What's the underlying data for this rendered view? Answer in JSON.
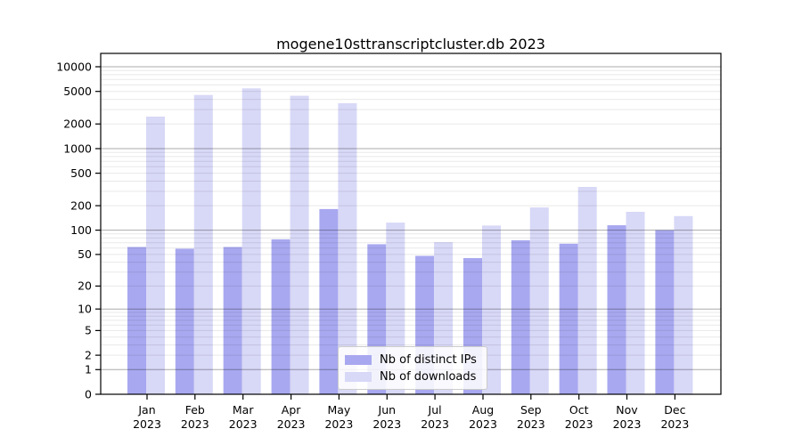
{
  "figure": {
    "title": "mogene10sttranscriptcluster.db 2023"
  },
  "chart_data": {
    "type": "bar",
    "title": "mogene10sttranscriptcluster.db 2023",
    "categories": [
      "Jan 2023",
      "Feb 2023",
      "Mar 2023",
      "Apr 2023",
      "May 2023",
      "Jun 2023",
      "Jul 2023",
      "Aug 2023",
      "Sep 2023",
      "Oct 2023",
      "Nov 2023",
      "Dec 2023"
    ],
    "x_tick_line1": [
      "Jan",
      "Feb",
      "Mar",
      "Apr",
      "May",
      "Jun",
      "Jul",
      "Aug",
      "Sep",
      "Oct",
      "Nov",
      "Dec"
    ],
    "x_tick_line2": "2023",
    "series": [
      {
        "name": "Nb of distinct IPs",
        "color": "#a8a8f0",
        "values": [
          62,
          59,
          62,
          77,
          182,
          67,
          48,
          45,
          75,
          68,
          115,
          100
        ]
      },
      {
        "name": "Nb of downloads",
        "color": "#d8d8f7",
        "values": [
          2460,
          4520,
          5440,
          4420,
          3580,
          124,
          71,
          114,
          190,
          340,
          168,
          149
        ]
      }
    ],
    "yscale": "log1p",
    "ylim": [
      0,
      14500
    ],
    "yticks": [
      0,
      1,
      2,
      5,
      10,
      20,
      50,
      100,
      200,
      500,
      1000,
      2000,
      5000,
      10000
    ],
    "grid": "horizontal",
    "legend": {
      "position": "inside-bottom-center",
      "entries": [
        "Nb of distinct IPs",
        "Nb of downloads"
      ]
    },
    "colors": {
      "bar_ips": "#a8a8f0",
      "bar_downloads": "#d8d8f7",
      "major_grid": "rgba(0,0,0,0.33)",
      "minor_grid": "rgba(0,0,0,0.09)",
      "axis": "#000000",
      "legend_border": "#cccccc"
    }
  }
}
